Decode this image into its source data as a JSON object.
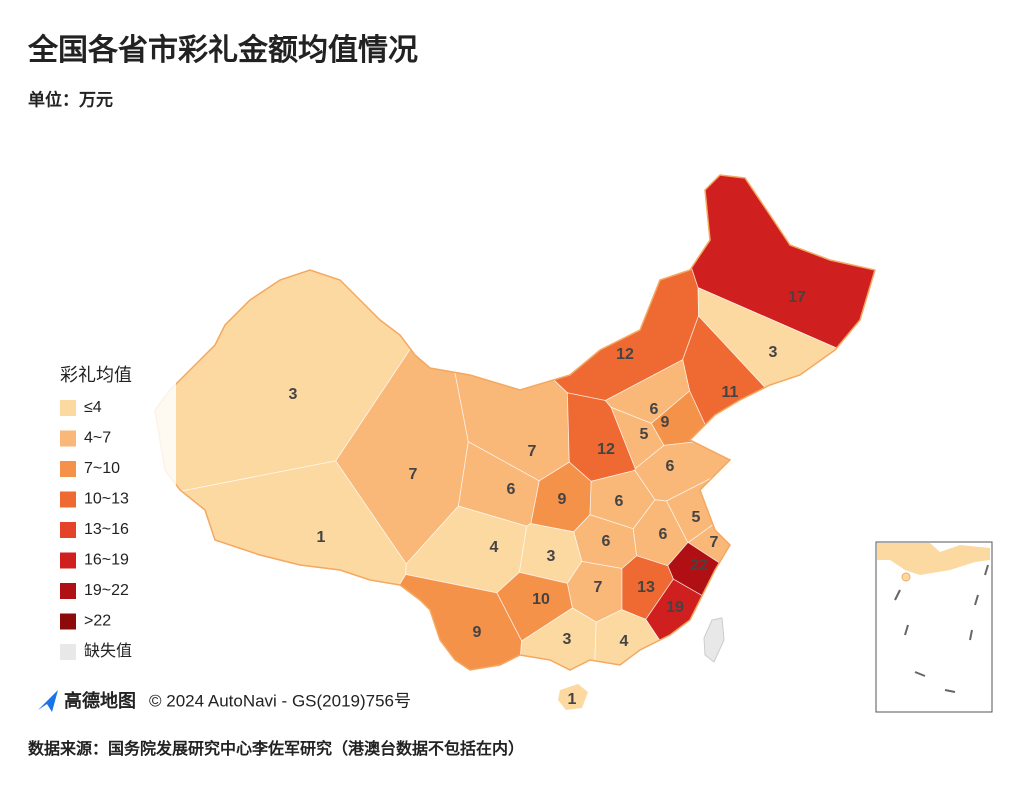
{
  "title": "全国各省市彩礼金额均值情况",
  "subtitle": "单位：万元",
  "legend": {
    "title": "彩礼均值",
    "breaks": [
      4,
      7,
      10,
      13,
      16,
      19,
      22
    ],
    "items": [
      {
        "label": "≤4",
        "color": "#fcd9a1"
      },
      {
        "label": "4~7",
        "color": "#f9b778"
      },
      {
        "label": "7~10",
        "color": "#f5924a"
      },
      {
        "label": "10~13",
        "color": "#ef6a32"
      },
      {
        "label": "13~16",
        "color": "#e4432a"
      },
      {
        "label": "16~19",
        "color": "#d01f1f"
      },
      {
        "label": "19~22",
        "color": "#b01014"
      },
      {
        "label": ">22",
        "color": "#8c0a0a"
      },
      {
        "label": "缺失值",
        "color": "#e8e8e8"
      }
    ]
  },
  "regions": {
    "values": [
      3,
      1,
      7,
      6,
      12,
      17,
      3,
      11,
      7,
      9,
      12,
      6,
      9,
      5,
      6,
      6,
      5,
      6,
      6,
      7,
      4,
      3,
      22,
      7,
      13,
      10,
      19,
      9,
      3,
      4,
      1
    ]
  },
  "attribution": {
    "brand": "高德地图",
    "text": "© 2024 AutoNavi - GS(2019)756号"
  },
  "source": "数据来源：国务院发展研究中心李佐军研究（港澳台数据不包括在内）"
}
